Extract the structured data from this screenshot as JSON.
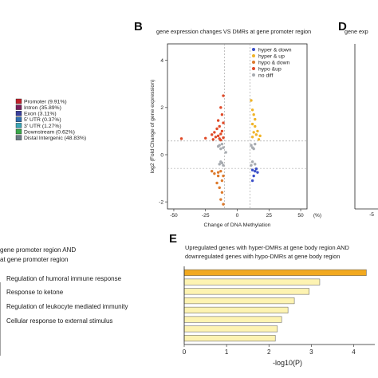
{
  "panels": {
    "b_letter": "B",
    "d_letter": "D",
    "e_letter": "E"
  },
  "annotation_legend": {
    "items": [
      {
        "label": "Promoter (9.91%)",
        "color": "#c0202a"
      },
      {
        "label": "Intron (35.89%)",
        "color": "#7a1f5c"
      },
      {
        "label": "Exon (3.11%)",
        "color": "#3a3f9c"
      },
      {
        "label": "5' UTR (0.37%)",
        "color": "#2f6fb0"
      },
      {
        "label": "3' UTR (1.27%)",
        "color": "#3ba6b7"
      },
      {
        "label": "Downstream (0.62%)",
        "color": "#3aa84a"
      },
      {
        "label": "Distal Intergenic (48.83%)",
        "color": "#6b7c86"
      }
    ]
  },
  "left_text": {
    "line1": "gene promoter region AND",
    "line2": "at gene promoter region",
    "go_terms": [
      "Regulation of humoral immune response",
      "Response to ketone",
      "Regulation of leukocyte mediated immunity",
      "Cellular response to external stimulus"
    ]
  },
  "panel_d": {
    "title_fragment": "gene exp",
    "tick_fragment": "-5"
  },
  "chart_data": [
    {
      "id": "B",
      "type": "scatter",
      "title": "gene expression changes VS DMRs at gene promoter region",
      "xlabel": "Change of DNA Methylation",
      "x_unit": "(%)",
      "ylabel": "log2 (Fold Change of gene expression)",
      "xlim": [
        -55,
        55
      ],
      "ylim": [
        -2.3,
        4.7
      ],
      "xticks": [
        -50,
        -25,
        0,
        25,
        50
      ],
      "yticks": [
        -2,
        0,
        2,
        4
      ],
      "grid": false,
      "legend_position": "top-right",
      "reference_lines": {
        "x": [
          -10,
          10
        ],
        "y": [
          -0.58,
          0.58
        ]
      },
      "series": [
        {
          "name": "hyper & down",
          "color": "#3a4fc8",
          "points": [
            [
              12,
              -0.65
            ],
            [
              14,
              -0.7
            ],
            [
              13,
              -0.9
            ],
            [
              15,
              -0.6
            ],
            [
              16,
              -0.75
            ],
            [
              12,
              -1.1
            ]
          ]
        },
        {
          "name": "hyper & up",
          "color": "#f0b428",
          "points": [
            [
              11,
              2.3
            ],
            [
              12,
              1.9
            ],
            [
              13,
              1.7
            ],
            [
              12,
              1.3
            ],
            [
              14,
              1.2
            ],
            [
              16,
              1.0
            ],
            [
              13,
              0.95
            ],
            [
              15,
              0.85
            ],
            [
              18,
              0.8
            ],
            [
              12,
              0.75
            ],
            [
              14,
              1.5
            ],
            [
              17,
              0.65
            ]
          ]
        },
        {
          "name": "hypo & down",
          "color": "#dd7a2c",
          "points": [
            [
              -11,
              -0.9
            ],
            [
              -12,
              -1.1
            ],
            [
              -13,
              -0.7
            ],
            [
              -15,
              -0.75
            ],
            [
              -14,
              -1.4
            ],
            [
              -12,
              -1.6
            ],
            [
              -13,
              -1.9
            ],
            [
              -16,
              -1.2
            ],
            [
              -20,
              -0.7
            ],
            [
              -18,
              -0.8
            ],
            [
              -11,
              -2.1
            ],
            [
              -15,
              -0.9
            ]
          ]
        },
        {
          "name": "hypo &up",
          "color": "#e04a28",
          "points": [
            [
              -11,
              2.5
            ],
            [
              -13,
              2.0
            ],
            [
              -12,
              1.7
            ],
            [
              -15,
              1.45
            ],
            [
              -11,
              1.35
            ],
            [
              -14,
              1.2
            ],
            [
              -16,
              1.1
            ],
            [
              -12,
              1.0
            ],
            [
              -18,
              0.95
            ],
            [
              -13,
              0.88
            ],
            [
              -20,
              0.85
            ],
            [
              -15,
              0.8
            ],
            [
              -17,
              0.75
            ],
            [
              -11,
              0.72
            ],
            [
              -25,
              0.7
            ],
            [
              -14,
              0.68
            ],
            [
              -44,
              0.68
            ],
            [
              -19,
              0.65
            ],
            [
              -13,
              0.62
            ]
          ]
        },
        {
          "name": "no diff",
          "color": "#a7abb0",
          "points": [
            [
              -12,
              0.45
            ],
            [
              -14,
              0.4
            ],
            [
              -11,
              0.3
            ],
            [
              -13,
              0.25
            ],
            [
              -15,
              0.35
            ],
            [
              -12,
              -0.35
            ],
            [
              -14,
              -0.4
            ],
            [
              -11,
              -0.45
            ],
            [
              -13,
              -0.3
            ],
            [
              11,
              0.4
            ],
            [
              12,
              0.3
            ],
            [
              14,
              0.45
            ],
            [
              13,
              0.25
            ],
            [
              12,
              -0.3
            ],
            [
              14,
              -0.4
            ],
            [
              11,
              -0.45
            ],
            [
              -9,
              0.1
            ]
          ]
        }
      ]
    },
    {
      "id": "E",
      "type": "bar",
      "orientation": "horizontal",
      "title_line1": "Upregulated genes with hyper-DMRs at gene body region AND",
      "title_line2": "downregulated genes with hypo-DMRs at gene body region",
      "xlabel": "-log10(P)",
      "xlim": [
        0,
        4.5
      ],
      "xticks": [
        0,
        1,
        2,
        3,
        4
      ],
      "values": [
        4.3,
        3.2,
        2.95,
        2.6,
        2.45,
        2.3,
        2.2,
        2.15
      ],
      "bar_colors": [
        "#f2a91f",
        "#fdf3b2",
        "#fdf3b2",
        "#fdf3b2",
        "#fdf3b2",
        "#fdf3b2",
        "#fdf3b2",
        "#fdf3b2"
      ]
    }
  ]
}
